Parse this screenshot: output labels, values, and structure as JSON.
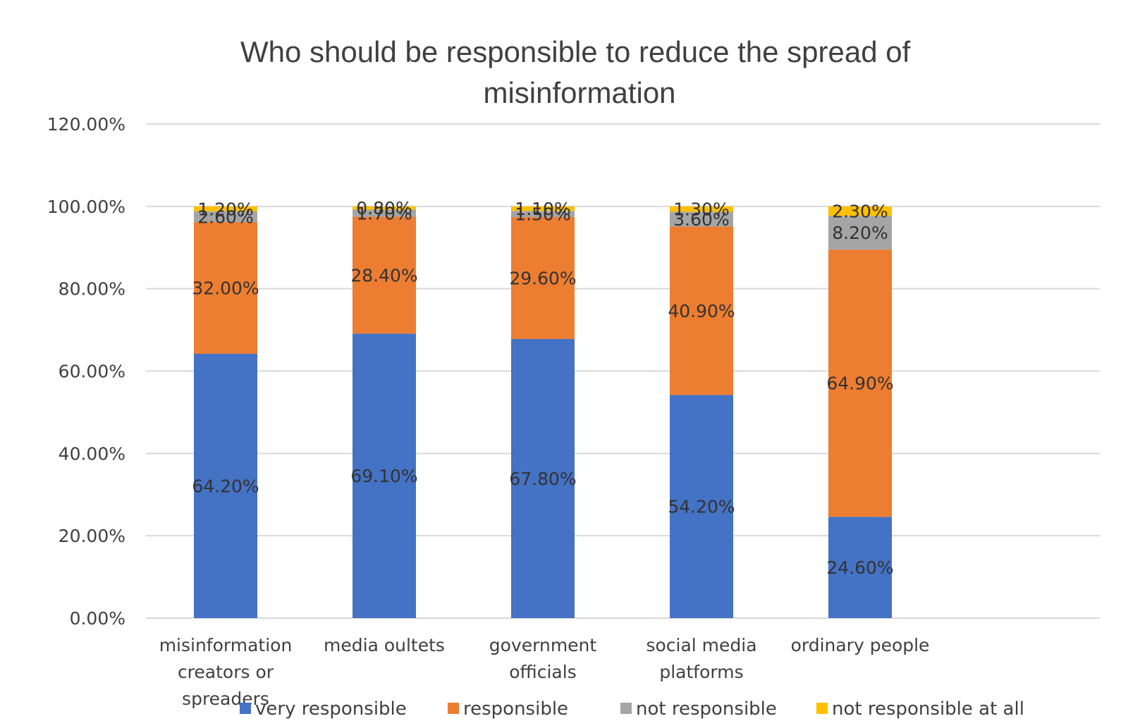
{
  "chart_data": {
    "type": "bar",
    "stacked": true,
    "title_lines": [
      "Who should be responsible to reduce the spread of",
      "misinformation"
    ],
    "categories": [
      [
        "misinformation",
        "creators or",
        "spreaders"
      ],
      [
        "media oultets"
      ],
      [
        "government",
        "officials"
      ],
      [
        "social media",
        "platforms"
      ],
      [
        "ordinary people"
      ]
    ],
    "series": [
      {
        "name": "very responsible",
        "color": "#4472c4",
        "values": [
          64.2,
          69.1,
          67.8,
          54.2,
          24.6
        ],
        "labels": [
          "64.20%",
          "69.10%",
          "67.80%",
          "54.20%",
          "24.60%"
        ]
      },
      {
        "name": "responsible",
        "color": "#ed7d31",
        "values": [
          32.0,
          28.4,
          29.6,
          40.9,
          64.9
        ],
        "labels": [
          "32.00%",
          "28.40%",
          "29.60%",
          "40.90%",
          "64.90%"
        ]
      },
      {
        "name": "not responsible",
        "color": "#a5a5a5",
        "values": [
          2.6,
          1.7,
          1.5,
          3.6,
          8.2
        ],
        "labels": [
          "2.60%",
          "1.70%",
          "1.50%",
          "3.60%",
          "8.20%"
        ]
      },
      {
        "name": "not responsible at all",
        "color": "#ffc000",
        "values": [
          1.2,
          0.8,
          1.1,
          1.3,
          2.3
        ],
        "labels": [
          "1.20%",
          "0.80%",
          "1.10%",
          "1.30%",
          "2.30%"
        ]
      }
    ],
    "ylim": [
      0,
      120
    ],
    "yticks": [
      "0.00%",
      "20.00%",
      "40.00%",
      "60.00%",
      "80.00%",
      "100.00%",
      "120.00%"
    ],
    "grid": true,
    "legend": "bottom"
  }
}
